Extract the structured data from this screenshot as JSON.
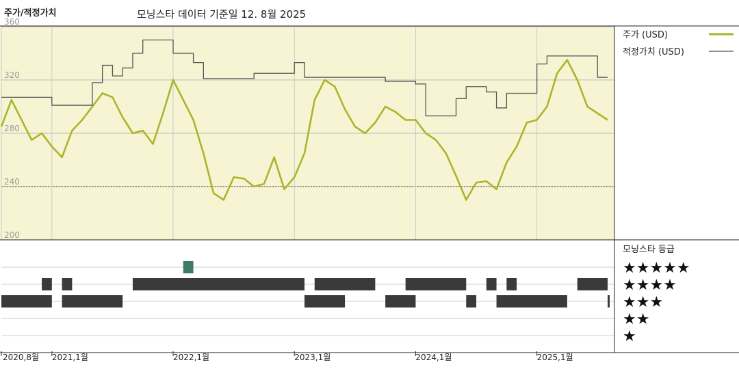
{
  "header": {
    "title": "주가/적정가치",
    "subtitle": "모닝스타 데이터 기준일 12. 8월 2025"
  },
  "colors": {
    "plot_background": "#f7f4d4",
    "price_line": "#aab52a",
    "fair_value_line": "#555555",
    "rating_bar": "#3a3a3a",
    "rating_bar_highlight": "#3e7b62"
  },
  "legend": {
    "price_label": "주가 (USD)",
    "fair_value_label": "적정가치 (USD)",
    "rating_title": "모닝스타 등급",
    "star_rows": [
      "★★★★★",
      "★★★★",
      "★★★",
      "★★",
      "★"
    ]
  },
  "chart_data": {
    "type": "line",
    "x_axis": {
      "start": "2020-08",
      "end": "2025-08",
      "tick_labels": [
        "2020,8월",
        "2021,1월",
        "2022,1월",
        "2023,1월",
        "2024,1월",
        "2025,1월"
      ],
      "tick_dates": [
        "2020-08",
        "2021-01",
        "2022-01",
        "2023-01",
        "2024-01",
        "2025-01"
      ]
    },
    "y_axis": {
      "ylim": [
        200,
        365
      ],
      "tick_labels": [
        "360",
        "320",
        "280",
        "240",
        "200"
      ],
      "tick_values": [
        360,
        320,
        280,
        240,
        200
      ]
    },
    "series": [
      {
        "name": "주가 (USD)",
        "points": [
          [
            "2020-08",
            285
          ],
          [
            "2020-09",
            305
          ],
          [
            "2020-10",
            290
          ],
          [
            "2020-11",
            275
          ],
          [
            "2020-12",
            280
          ],
          [
            "2021-01",
            270
          ],
          [
            "2021-02",
            262
          ],
          [
            "2021-03",
            282
          ],
          [
            "2021-04",
            290
          ],
          [
            "2021-05",
            300
          ],
          [
            "2021-06",
            310
          ],
          [
            "2021-07",
            307
          ],
          [
            "2021-08",
            292
          ],
          [
            "2021-09",
            280
          ],
          [
            "2021-10",
            282
          ],
          [
            "2021-11",
            272
          ],
          [
            "2021-12",
            295
          ],
          [
            "2022-01",
            320
          ],
          [
            "2022-02",
            305
          ],
          [
            "2022-03",
            290
          ],
          [
            "2022-04",
            265
          ],
          [
            "2022-05",
            235
          ],
          [
            "2022-06",
            230
          ],
          [
            "2022-07",
            247
          ],
          [
            "2022-08",
            246
          ],
          [
            "2022-09",
            240
          ],
          [
            "2022-10",
            242
          ],
          [
            "2022-11",
            262
          ],
          [
            "2022-12",
            238
          ],
          [
            "2023-01",
            247
          ],
          [
            "2023-02",
            265
          ],
          [
            "2023-03",
            305
          ],
          [
            "2023-04",
            320
          ],
          [
            "2023-05",
            315
          ],
          [
            "2023-06",
            298
          ],
          [
            "2023-07",
            285
          ],
          [
            "2023-08",
            280
          ],
          [
            "2023-09",
            288
          ],
          [
            "2023-10",
            300
          ],
          [
            "2023-11",
            296
          ],
          [
            "2023-12",
            290
          ],
          [
            "2024-01",
            290
          ],
          [
            "2024-02",
            280
          ],
          [
            "2024-03",
            275
          ],
          [
            "2024-04",
            265
          ],
          [
            "2024-05",
            248
          ],
          [
            "2024-06",
            230
          ],
          [
            "2024-07",
            243
          ],
          [
            "2024-08",
            244
          ],
          [
            "2024-09",
            238
          ],
          [
            "2024-10",
            258
          ],
          [
            "2024-11",
            270
          ],
          [
            "2024-12",
            288
          ],
          [
            "2025-01",
            290
          ],
          [
            "2025-02",
            300
          ],
          [
            "2025-03",
            325
          ],
          [
            "2025-04",
            335
          ],
          [
            "2025-05",
            320
          ],
          [
            "2025-06",
            300
          ],
          [
            "2025-07",
            295
          ],
          [
            "2025-08",
            290
          ]
        ]
      },
      {
        "name": "적정가치 (USD)",
        "points": [
          [
            "2020-08",
            307
          ],
          [
            "2020-12",
            307
          ],
          [
            "2021-01",
            301
          ],
          [
            "2021-04",
            301
          ],
          [
            "2021-05",
            318
          ],
          [
            "2021-06",
            331
          ],
          [
            "2021-07",
            323
          ],
          [
            "2021-08",
            329
          ],
          [
            "2021-09",
            340
          ],
          [
            "2021-10",
            350
          ],
          [
            "2021-12",
            350
          ],
          [
            "2022-01",
            340
          ],
          [
            "2022-03",
            333
          ],
          [
            "2022-04",
            321
          ],
          [
            "2022-08",
            321
          ],
          [
            "2022-09",
            325
          ],
          [
            "2022-12",
            325
          ],
          [
            "2023-01",
            333
          ],
          [
            "2023-02",
            322
          ],
          [
            "2023-06",
            322
          ],
          [
            "2023-09",
            322
          ],
          [
            "2023-10",
            319
          ],
          [
            "2023-12",
            319
          ],
          [
            "2024-01",
            317
          ],
          [
            "2024-02",
            293
          ],
          [
            "2024-04",
            293
          ],
          [
            "2024-05",
            306
          ],
          [
            "2024-06",
            315
          ],
          [
            "2024-08",
            311
          ],
          [
            "2024-09",
            299
          ],
          [
            "2024-10",
            310
          ],
          [
            "2024-12",
            310
          ],
          [
            "2025-01",
            332
          ],
          [
            "2025-02",
            338
          ],
          [
            "2025-03",
            338
          ],
          [
            "2025-06",
            338
          ],
          [
            "2025-07",
            322
          ],
          [
            "2025-08",
            322
          ]
        ]
      }
    ],
    "rating_history": {
      "levels": [
        5,
        4,
        3,
        2,
        1
      ],
      "periods": [
        {
          "stars": 3,
          "start": "2020-08",
          "end": "2021-01"
        },
        {
          "stars": 4,
          "start": "2020-12",
          "end": "2021-01"
        },
        {
          "stars": 3,
          "start": "2021-02",
          "end": "2021-08"
        },
        {
          "stars": 4,
          "start": "2021-02",
          "end": "2021-03"
        },
        {
          "stars": 4,
          "start": "2021-09",
          "end": "2022-08"
        },
        {
          "stars": 5,
          "start": "2022-02",
          "end": "2022-03"
        },
        {
          "stars": 4,
          "start": "2022-04",
          "end": "2023-02"
        },
        {
          "stars": 3,
          "start": "2023-02",
          "end": "2023-06"
        },
        {
          "stars": 4,
          "start": "2023-03",
          "end": "2023-09"
        },
        {
          "stars": 3,
          "start": "2023-10",
          "end": "2024-01"
        },
        {
          "stars": 4,
          "start": "2023-12",
          "end": "2024-06"
        },
        {
          "stars": 3,
          "start": "2024-06",
          "end": "2024-07"
        },
        {
          "stars": 4,
          "start": "2024-08",
          "end": "2024-09"
        },
        {
          "stars": 3,
          "start": "2024-09",
          "end": "2025-04"
        },
        {
          "stars": 4,
          "start": "2024-10",
          "end": "2024-11"
        },
        {
          "stars": 4,
          "start": "2025-05",
          "end": "2025-08"
        },
        {
          "stars": 3,
          "start": "2025-08",
          "end": "2025-08"
        }
      ]
    },
    "grid": true,
    "legend_position": "right"
  }
}
